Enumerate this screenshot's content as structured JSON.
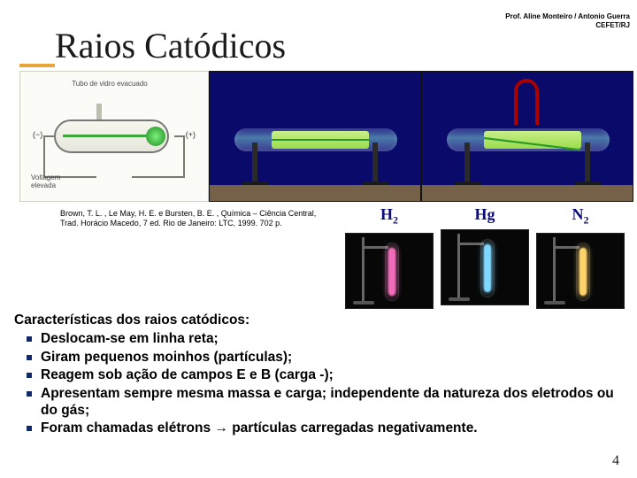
{
  "credit": {
    "line1": "Prof. Aline Monteiro / Antonio Guerra",
    "line2": "CEFET/RJ"
  },
  "title": "Raios Catódicos",
  "diagram": {
    "label_top": "Tubo de vidro evacuado",
    "label_bottom": "Voltagem elevada",
    "sign_minus": "(−)",
    "sign_plus": "(+)"
  },
  "citation": "Brown, T. L. , Le May, H. E. e Bursten, B. E. , Química – Ciência Central, Trad. Horácio Macedo, 7 ed. Rio de Janeiro: LTC, 1999. 702 p.",
  "tubes": [
    {
      "label_html": "H<sub>2</sub>",
      "glow_color": "#f06bb8"
    },
    {
      "label_html": "Hg",
      "glow_color": "#7fd8ff"
    },
    {
      "label_html": "N<sub>2</sub>",
      "glow_color": "#ffd36b"
    }
  ],
  "body": {
    "heading": "Características dos raios catódicos:",
    "items": [
      "Deslocam-se em linha reta;",
      "Giram pequenos moinhos (partículas);",
      "Reagem sob ação de campos E e B (carga -);",
      "Apresentam sempre mesma massa e carga; independente da natureza dos eletrodos ou do gás;",
      "Foram chamadas elétrons → partículas carregadas negativamente."
    ]
  },
  "page_number": "4",
  "colors": {
    "title_underline": "#e8a63a",
    "bullet": "#0e2a6b",
    "label_blue": "#0d0d7a",
    "photo_bg": "#0a0a6a"
  }
}
